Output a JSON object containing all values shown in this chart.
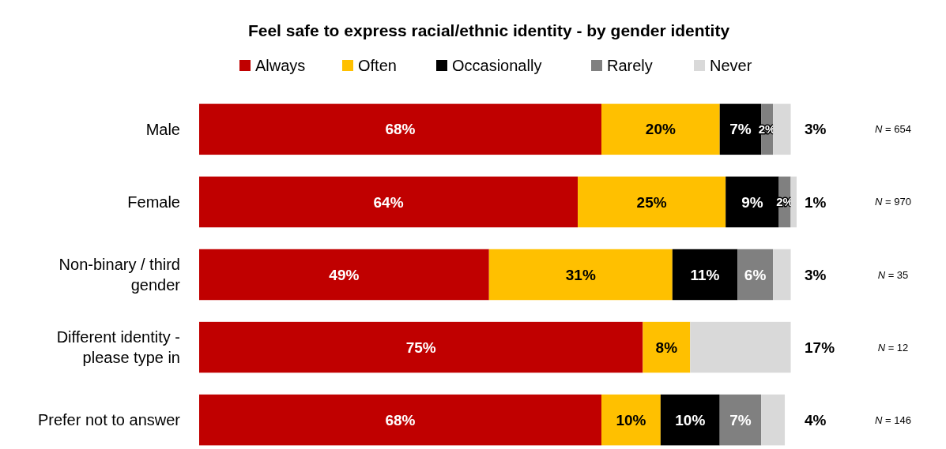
{
  "chart_data": {
    "type": "bar",
    "orientation": "horizontal",
    "stacked": true,
    "title": "Feel safe to express racial/ethnic identity - by gender identity",
    "categories": [
      "Male",
      "Female",
      "Non-binary / third gender",
      "Different identity - please type in",
      "Prefer not to answer"
    ],
    "tick_labels": "y",
    "legend": "top",
    "grid": false,
    "series": [
      {
        "name": "Always",
        "color": "#c00000",
        "values": [
          68,
          64,
          49,
          75,
          68
        ],
        "value_labels": [
          "68%",
          "64%",
          "49%",
          "75%",
          "68%"
        ]
      },
      {
        "name": "Often",
        "color": "#ffc000",
        "values": [
          20,
          25,
          31,
          8,
          10
        ],
        "value_labels": [
          "20%",
          "25%",
          "31%",
          "8%",
          "10%"
        ]
      },
      {
        "name": "Occasionally",
        "color": "#000000",
        "values": [
          7,
          9,
          11,
          null,
          10
        ],
        "value_labels": [
          "7%",
          "9%",
          "11%",
          null,
          "10%"
        ]
      },
      {
        "name": "Rarely",
        "color": "#808080",
        "values": [
          2,
          2,
          6,
          null,
          7
        ],
        "value_labels": [
          "2%",
          "2%",
          "6%",
          null,
          "7%"
        ]
      },
      {
        "name": "Never",
        "color": "#d9d9d9",
        "values": [
          3,
          1,
          3,
          17,
          4
        ],
        "value_labels": [
          "3%",
          "1%",
          "3%",
          "17%",
          "4%"
        ]
      }
    ],
    "annotations": [
      "N = 654",
      "N = 970",
      "N = 35",
      "N = 12",
      "N = 146"
    ]
  }
}
